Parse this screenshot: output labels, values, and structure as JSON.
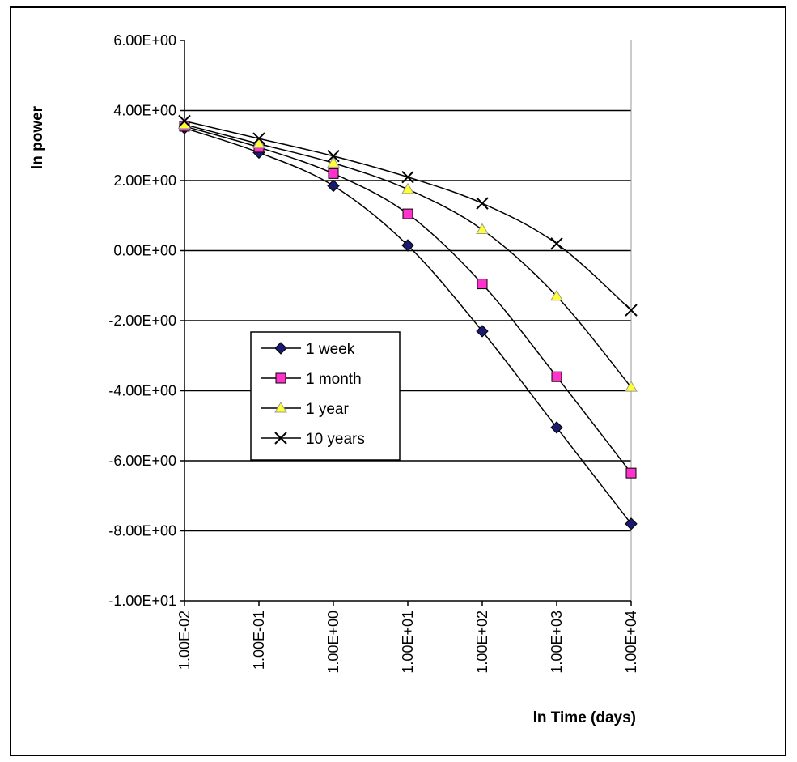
{
  "chart_data": {
    "type": "line",
    "title": "",
    "xlabel": "ln Time (days)",
    "ylabel": "ln power",
    "x": [
      0.01,
      0.1,
      1,
      10,
      100,
      1000,
      10000
    ],
    "x_tick_labels": [
      "1.00E-02",
      "1.00E-01",
      "1.00E+00",
      "1.00E+01",
      "1.00E+02",
      "1.00E+03",
      "1.00E+04"
    ],
    "x_scale": "log",
    "xlim": [
      0.01,
      10000
    ],
    "ylim": [
      -10,
      6
    ],
    "y_ticks": [
      6,
      4,
      2,
      0,
      -2,
      -4,
      -6,
      -8,
      -10
    ],
    "y_tick_labels": [
      "6.00E+00",
      "4.00E+00",
      "2.00E+00",
      "0.00E+00",
      "-2.00E+00",
      "-4.00E+00",
      "-6.00E+00",
      "-8.00E+00",
      "-1.00E+01"
    ],
    "grid": "horizontal",
    "legend_position": "center-left",
    "series": [
      {
        "name": "1 week",
        "marker": "diamond",
        "color": "#1a1a6e",
        "values": [
          3.5,
          2.8,
          1.85,
          0.15,
          -2.3,
          -5.05,
          -7.8
        ]
      },
      {
        "name": "1 month",
        "marker": "square",
        "color": "#ff33cc",
        "values": [
          3.55,
          2.95,
          2.2,
          1.05,
          -0.95,
          -3.6,
          -6.35
        ]
      },
      {
        "name": "1 year",
        "marker": "triangle",
        "color": "#ffff33",
        "values": [
          3.6,
          3.05,
          2.5,
          1.75,
          0.6,
          -1.3,
          -3.9
        ]
      },
      {
        "name": "10 years",
        "marker": "x",
        "color": "#000000",
        "values": [
          3.7,
          3.2,
          2.7,
          2.1,
          1.35,
          0.2,
          -1.7
        ]
      }
    ]
  }
}
